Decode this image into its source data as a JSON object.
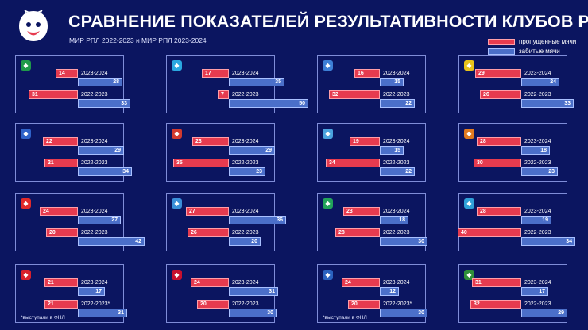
{
  "header": {
    "title": "СРАВНЕНИЕ ПОКАЗАТЕЛЕЙ РЕЗУЛЬТАТИВНОСТИ КЛУБОВ РПЛ",
    "subtitle": "МИР РПЛ 2022-2023 и МИР РПЛ 2023-2024"
  },
  "legend": {
    "conceded": "пропущенные мячи",
    "scored": "забитые мячи"
  },
  "colors": {
    "background": "#0b1560",
    "conceded": "#e63b4f",
    "scored": "#4b6fc9",
    "card_border": "#7f8dd8"
  },
  "chart_data": {
    "type": "bar",
    "series": [
      {
        "name": "пропущенные мячи"
      },
      {
        "name": "забитые мячи"
      }
    ],
    "clubs": [
      {
        "icon": "krasnodar-crest-icon",
        "icon_color": "#1f9a4a",
        "rows": [
          {
            "season": "2023-2024",
            "conceded": 14,
            "scored": 28
          },
          {
            "season": "2022-2023",
            "conceded": 31,
            "scored": 33
          }
        ]
      },
      {
        "icon": "zenit-crest-icon",
        "icon_color": "#2aa7e0",
        "rows": [
          {
            "season": "2023-2024",
            "conceded": 17,
            "scored": 35
          },
          {
            "season": "2022-2023",
            "conceded": 7,
            "scored": 50
          }
        ]
      },
      {
        "icon": "fakel-crest-icon",
        "icon_color": "#3d7fd6",
        "rows": [
          {
            "season": "2023-2024",
            "conceded": 16,
            "scored": 15
          },
          {
            "season": "2022-2023",
            "conceded": 32,
            "scored": 22
          }
        ]
      },
      {
        "icon": "rostov-crest-icon",
        "icon_color": "#e8c21a",
        "rows": [
          {
            "season": "2023-2024",
            "conceded": 29,
            "scored": 24
          },
          {
            "season": "2022-2023",
            "conceded": 26,
            "scored": 33
          }
        ]
      },
      {
        "icon": "dynamo-crest-icon",
        "icon_color": "#2f62c9",
        "rows": [
          {
            "season": "2023-2024",
            "conceded": 22,
            "scored": 29
          },
          {
            "season": "2022-2023",
            "conceded": 21,
            "scored": 34
          }
        ]
      },
      {
        "icon": "lokomotiv-crest-icon",
        "icon_color": "#d23a2f",
        "rows": [
          {
            "season": "2023-2024",
            "conceded": 23,
            "scored": 29
          },
          {
            "season": "2022-2023",
            "conceded": 35,
            "scored": 23
          }
        ]
      },
      {
        "icon": "orenburg-crest-icon",
        "icon_color": "#4aa3df",
        "rows": [
          {
            "season": "2023-2024",
            "conceded": 19,
            "scored": 15
          },
          {
            "season": "2022-2023",
            "conceded": 34,
            "scored": 22
          }
        ]
      },
      {
        "icon": "ural-crest-icon",
        "icon_color": "#e07a20",
        "rows": [
          {
            "season": "2023-2024",
            "conceded": 28,
            "scored": 18
          },
          {
            "season": "2022-2023",
            "conceded": 30,
            "scored": 23
          }
        ]
      },
      {
        "icon": "spartak-crest-icon",
        "icon_color": "#e02a2a",
        "rows": [
          {
            "season": "2023-2024",
            "conceded": 24,
            "scored": 27
          },
          {
            "season": "2022-2023",
            "conceded": 20,
            "scored": 42
          }
        ]
      },
      {
        "icon": "krylia-crest-icon",
        "icon_color": "#3a8fd8",
        "rows": [
          {
            "season": "2023-2024",
            "conceded": 27,
            "scored": 36
          },
          {
            "season": "2022-2023",
            "conceded": 26,
            "scored": 20
          }
        ]
      },
      {
        "icon": "akhmat-crest-icon",
        "icon_color": "#22a35a",
        "rows": [
          {
            "season": "2023-2024",
            "conceded": 23,
            "scored": 18
          },
          {
            "season": "2022-2023",
            "conceded": 28,
            "scored": 30
          }
        ]
      },
      {
        "icon": "sochi-crest-icon",
        "icon_color": "#2fa0d8",
        "rows": [
          {
            "season": "2023-2024",
            "conceded": 28,
            "scored": 19
          },
          {
            "season": "2022-2023",
            "conceded": 40,
            "scored": 34
          }
        ]
      },
      {
        "icon": "rubin-crest-icon",
        "icon_color": "#d8202c",
        "rows": [
          {
            "season": "2023-2024",
            "conceded": 21,
            "scored": 17
          },
          {
            "season": "2022-2023*",
            "conceded": 21,
            "scored": 31
          }
        ],
        "note": "*выступали в ФНЛ"
      },
      {
        "icon": "cska-crest-icon",
        "icon_color": "#c8102e",
        "rows": [
          {
            "season": "2023-2024",
            "conceded": 24,
            "scored": 31
          },
          {
            "season": "2022-2023",
            "conceded": 20,
            "scored": 30
          }
        ]
      },
      {
        "icon": "baltika-crest-icon",
        "icon_color": "#2a62c0",
        "rows": [
          {
            "season": "2023-2024",
            "conceded": 24,
            "scored": 12
          },
          {
            "season": "2022-2023*",
            "conceded": 20,
            "scored": 30
          }
        ],
        "note": "*выступали в ФНЛ"
      },
      {
        "icon": "pari-nn-crest-icon",
        "icon_color": "#2f8f3a",
        "rows": [
          {
            "season": "2023-2024",
            "conceded": 31,
            "scored": 17
          },
          {
            "season": "2022-2023",
            "conceded": 32,
            "scored": 29
          }
        ]
      }
    ]
  }
}
